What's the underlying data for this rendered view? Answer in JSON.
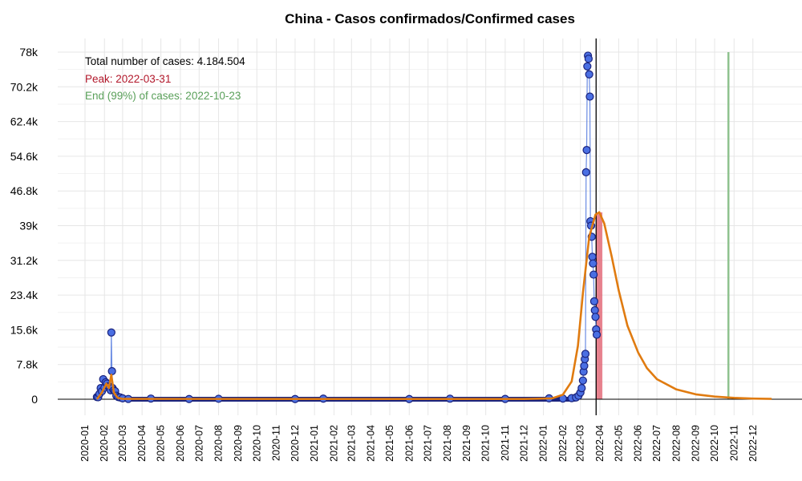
{
  "chart_data": {
    "type": "scatter",
    "title": "China - Casos confirmados/Confirmed cases",
    "xlabel": "",
    "ylabel": "",
    "ylim": [
      0,
      78000
    ],
    "y_ticks": [
      {
        "value": 0,
        "label": "0"
      },
      {
        "value": 7800,
        "label": "7.8k"
      },
      {
        "value": 15600,
        "label": "15.6k"
      },
      {
        "value": 23400,
        "label": "23.4k"
      },
      {
        "value": 31200,
        "label": "31.2k"
      },
      {
        "value": 39000,
        "label": "39k"
      },
      {
        "value": 46800,
        "label": "46.8k"
      },
      {
        "value": 54600,
        "label": "54.6k"
      },
      {
        "value": 62400,
        "label": "62.4k"
      },
      {
        "value": 70200,
        "label": "70.2k"
      },
      {
        "value": 78000,
        "label": "78k"
      }
    ],
    "x_ticks": [
      "2020-01",
      "2020-02",
      "2020-03",
      "2020-04",
      "2020-05",
      "2020-06",
      "2020-07",
      "2020-08",
      "2020-09",
      "2020-10",
      "2020-11",
      "2020-12",
      "2021-01",
      "2021-02",
      "2021-03",
      "2021-04",
      "2021-05",
      "2021-06",
      "2021-07",
      "2021-08",
      "2021-09",
      "2021-10",
      "2021-11",
      "2021-12",
      "2022-01",
      "2022-02",
      "2022-03",
      "2022-04",
      "2022-05",
      "2022-06",
      "2022-07",
      "2022-08",
      "2022-09",
      "2022-10",
      "2022-11",
      "2022-12"
    ],
    "grid": true,
    "annotations": [
      {
        "text": "Total number of cases: 4.184.504",
        "color": "#000000"
      },
      {
        "text": "Peak: 2022-03-31",
        "color": "#b2182b"
      },
      {
        "text": "End (99%) of cases: 2022-10-23",
        "color": "#5aa05a"
      }
    ],
    "markers": {
      "today_line": "2022-03-26",
      "peak_band": [
        "2022-03-26",
        "2022-04-05"
      ],
      "end_line": "2022-10-23"
    },
    "series": [
      {
        "kind": "observed",
        "color": "#4a6fe3",
        "edge_color": "#1a237e",
        "points": [
          {
            "x": "2020-01-20",
            "y": 500
          },
          {
            "x": "2020-01-22",
            "y": 450
          },
          {
            "x": "2020-01-24",
            "y": 1200
          },
          {
            "x": "2020-01-26",
            "y": 2500
          },
          {
            "x": "2020-01-28",
            "y": 1800
          },
          {
            "x": "2020-01-30",
            "y": 4500
          },
          {
            "x": "2020-02-01",
            "y": 2600
          },
          {
            "x": "2020-02-03",
            "y": 3800
          },
          {
            "x": "2020-02-05",
            "y": 3500
          },
          {
            "x": "2020-02-07",
            "y": 2900
          },
          {
            "x": "2020-02-09",
            "y": 2800
          },
          {
            "x": "2020-02-11",
            "y": 2000
          },
          {
            "x": "2020-02-12",
            "y": 15000
          },
          {
            "x": "2020-02-13",
            "y": 6300
          },
          {
            "x": "2020-02-14",
            "y": 2500
          },
          {
            "x": "2020-02-16",
            "y": 2000
          },
          {
            "x": "2020-02-18",
            "y": 1800
          },
          {
            "x": "2020-02-20",
            "y": 800
          },
          {
            "x": "2020-02-23",
            "y": 500
          },
          {
            "x": "2020-02-26",
            "y": 400
          },
          {
            "x": "2020-03-01",
            "y": 200
          },
          {
            "x": "2020-03-10",
            "y": 60
          },
          {
            "x": "2020-04-15",
            "y": 150
          },
          {
            "x": "2020-06-15",
            "y": 50
          },
          {
            "x": "2020-08-01",
            "y": 100
          },
          {
            "x": "2020-12-01",
            "y": 40
          },
          {
            "x": "2021-01-15",
            "y": 130
          },
          {
            "x": "2021-06-01",
            "y": 40
          },
          {
            "x": "2021-08-05",
            "y": 120
          },
          {
            "x": "2021-11-01",
            "y": 70
          },
          {
            "x": "2022-01-10",
            "y": 200
          },
          {
            "x": "2022-02-01",
            "y": 150
          },
          {
            "x": "2022-02-15",
            "y": 250
          },
          {
            "x": "2022-02-22",
            "y": 400
          },
          {
            "x": "2022-02-26",
            "y": 800
          },
          {
            "x": "2022-03-01",
            "y": 1500
          },
          {
            "x": "2022-03-03",
            "y": 2500
          },
          {
            "x": "2022-03-05",
            "y": 4200
          },
          {
            "x": "2022-03-06",
            "y": 6200
          },
          {
            "x": "2022-03-07",
            "y": 7500
          },
          {
            "x": "2022-03-08",
            "y": 9000
          },
          {
            "x": "2022-03-09",
            "y": 10200
          },
          {
            "x": "2022-03-10",
            "y": 51000
          },
          {
            "x": "2022-03-11",
            "y": 56000
          },
          {
            "x": "2022-03-12",
            "y": 74800
          },
          {
            "x": "2022-03-13",
            "y": 77200
          },
          {
            "x": "2022-03-14",
            "y": 76500
          },
          {
            "x": "2022-03-15",
            "y": 73000
          },
          {
            "x": "2022-03-16",
            "y": 68000
          },
          {
            "x": "2022-03-17",
            "y": 40000
          },
          {
            "x": "2022-03-18",
            "y": 39000
          },
          {
            "x": "2022-03-19",
            "y": 36500
          },
          {
            "x": "2022-03-20",
            "y": 32000
          },
          {
            "x": "2022-03-21",
            "y": 30500
          },
          {
            "x": "2022-03-22",
            "y": 28000
          },
          {
            "x": "2022-03-23",
            "y": 22000
          },
          {
            "x": "2022-03-24",
            "y": 20000
          },
          {
            "x": "2022-03-25",
            "y": 18500
          },
          {
            "x": "2022-03-26",
            "y": 15700
          },
          {
            "x": "2022-03-27",
            "y": 14500
          }
        ]
      },
      {
        "kind": "fit",
        "color": "#e07b10",
        "points": [
          {
            "x": "2020-01-20",
            "y": 0
          },
          {
            "x": "2020-01-28",
            "y": 1500
          },
          {
            "x": "2020-02-04",
            "y": 3500
          },
          {
            "x": "2020-02-08",
            "y": 2500
          },
          {
            "x": "2020-02-12",
            "y": 5500
          },
          {
            "x": "2020-02-16",
            "y": 1500
          },
          {
            "x": "2020-02-22",
            "y": 300
          },
          {
            "x": "2020-03-01",
            "y": 80
          },
          {
            "x": "2021-12-01",
            "y": 50
          },
          {
            "x": "2022-01-15",
            "y": 200
          },
          {
            "x": "2022-02-01",
            "y": 1000
          },
          {
            "x": "2022-02-15",
            "y": 4000
          },
          {
            "x": "2022-02-25",
            "y": 12000
          },
          {
            "x": "2022-03-05",
            "y": 24000
          },
          {
            "x": "2022-03-15",
            "y": 36500
          },
          {
            "x": "2022-03-25",
            "y": 41500
          },
          {
            "x": "2022-03-31",
            "y": 42000
          },
          {
            "x": "2022-04-08",
            "y": 39500
          },
          {
            "x": "2022-04-20",
            "y": 32000
          },
          {
            "x": "2022-05-01",
            "y": 24500
          },
          {
            "x": "2022-05-15",
            "y": 16500
          },
          {
            "x": "2022-06-01",
            "y": 10500
          },
          {
            "x": "2022-06-15",
            "y": 7000
          },
          {
            "x": "2022-07-01",
            "y": 4500
          },
          {
            "x": "2022-08-01",
            "y": 2200
          },
          {
            "x": "2022-09-01",
            "y": 1100
          },
          {
            "x": "2022-10-01",
            "y": 600
          },
          {
            "x": "2022-11-01",
            "y": 300
          },
          {
            "x": "2022-12-01",
            "y": 150
          },
          {
            "x": "2022-12-31",
            "y": 80
          }
        ]
      }
    ]
  }
}
